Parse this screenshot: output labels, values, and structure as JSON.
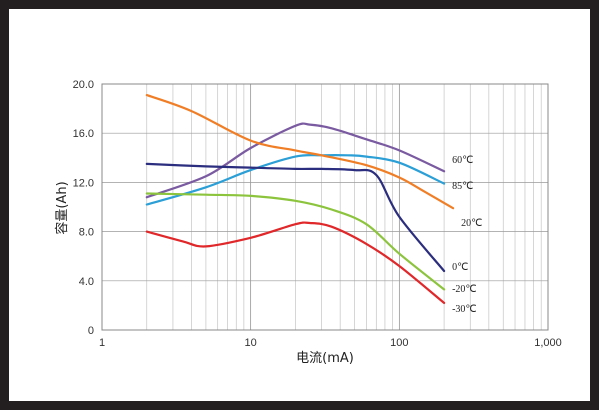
{
  "chart_data": {
    "type": "line",
    "title": "",
    "xlabel": "电流(mA)",
    "ylabel": "容量(Ah)",
    "x_scale": "log",
    "xlim": [
      1,
      1000
    ],
    "ylim": [
      0,
      20
    ],
    "grid": true,
    "x_ticks": [
      {
        "value": 1,
        "label": "1"
      },
      {
        "value": 10,
        "label": "10"
      },
      {
        "value": 100,
        "label": "100"
      },
      {
        "value": 1000,
        "label": "1,000"
      }
    ],
    "y_ticks": [
      {
        "value": 0,
        "label": "0"
      },
      {
        "value": 4,
        "label": "4.0"
      },
      {
        "value": 8,
        "label": "8.0"
      },
      {
        "value": 12,
        "label": "12.0"
      },
      {
        "value": 16,
        "label": "16.0"
      },
      {
        "value": 20,
        "label": "20.0"
      }
    ],
    "series": [
      {
        "name": "60℃",
        "color": "#7a5aa0",
        "x": [
          2,
          5,
          10,
          20,
          25,
          35,
          60,
          100,
          200
        ],
        "y": [
          10.8,
          12.5,
          14.8,
          16.6,
          16.7,
          16.4,
          15.5,
          14.6,
          12.9
        ]
      },
      {
        "name": "85℃",
        "color": "#2b9fd6",
        "x": [
          2,
          5,
          10,
          20,
          30,
          45,
          60,
          100,
          200
        ],
        "y": [
          10.2,
          11.6,
          13.0,
          14.1,
          14.2,
          14.2,
          14.1,
          13.6,
          11.9
        ]
      },
      {
        "name": "20℃",
        "color": "#f07e26",
        "x": [
          2,
          4,
          10,
          20,
          30,
          60,
          100,
          150,
          230
        ],
        "y": [
          19.1,
          17.8,
          15.4,
          14.6,
          14.2,
          13.4,
          12.4,
          11.2,
          9.9
        ]
      },
      {
        "name": "0℃",
        "color": "#2b2d7e",
        "x": [
          2,
          5,
          10,
          20,
          30,
          50,
          70,
          100,
          200
        ],
        "y": [
          13.5,
          13.3,
          13.2,
          13.1,
          13.1,
          13.0,
          12.6,
          9.2,
          4.8
        ]
      },
      {
        "name": "-20℃",
        "color": "#8cc43d",
        "x": [
          2,
          5,
          10,
          20,
          35,
          60,
          100,
          200
        ],
        "y": [
          11.1,
          11.0,
          10.9,
          10.5,
          9.8,
          8.6,
          6.2,
          3.3
        ]
      },
      {
        "name": "-30℃",
        "color": "#e0272a",
        "x": [
          2,
          3.5,
          5,
          10,
          20,
          25,
          35,
          60,
          100,
          200
        ],
        "y": [
          8.0,
          7.2,
          6.8,
          7.5,
          8.6,
          8.7,
          8.4,
          7.0,
          5.2,
          2.2
        ]
      }
    ]
  }
}
